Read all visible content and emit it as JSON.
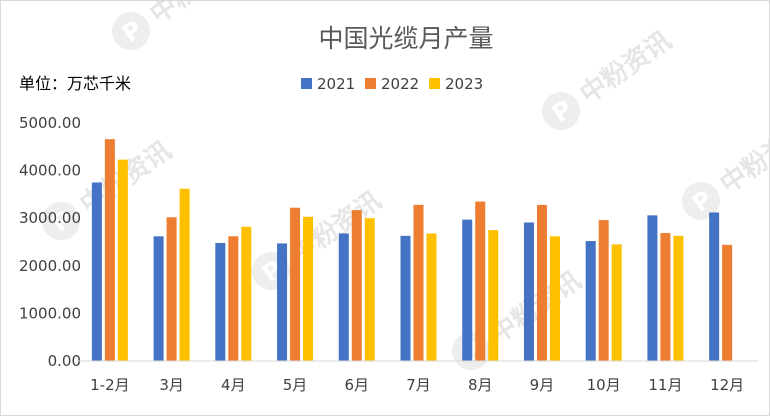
{
  "watermark": {
    "text": "中粉资讯"
  },
  "chart_data": {
    "type": "bar",
    "title": "中国光缆月产量",
    "unit_label": "单位：万芯千米",
    "categories": [
      "1-2月",
      "3月",
      "4月",
      "5月",
      "6月",
      "7月",
      "8月",
      "9月",
      "10月",
      "11月",
      "12月"
    ],
    "series": [
      {
        "name": "2021",
        "color": "#4472c4",
        "values": [
          3750,
          2620,
          2480,
          2470,
          2680,
          2630,
          2970,
          2910,
          2520,
          3060,
          3120
        ]
      },
      {
        "name": "2022",
        "color": "#ed7d31",
        "values": [
          4660,
          3020,
          2620,
          3220,
          3170,
          3280,
          3350,
          3280,
          2960,
          2690,
          2440
        ]
      },
      {
        "name": "2023",
        "color": "#ffc000",
        "values": [
          4230,
          3620,
          2820,
          3030,
          3000,
          2680,
          2750,
          2620,
          2450,
          2630,
          null
        ]
      }
    ],
    "yticks": [
      "0.00",
      "1000.00",
      "2000.00",
      "3000.00",
      "4000.00",
      "5000.00"
    ],
    "ylim": [
      0,
      5000
    ],
    "grid": false,
    "legend_position": "top-center"
  }
}
